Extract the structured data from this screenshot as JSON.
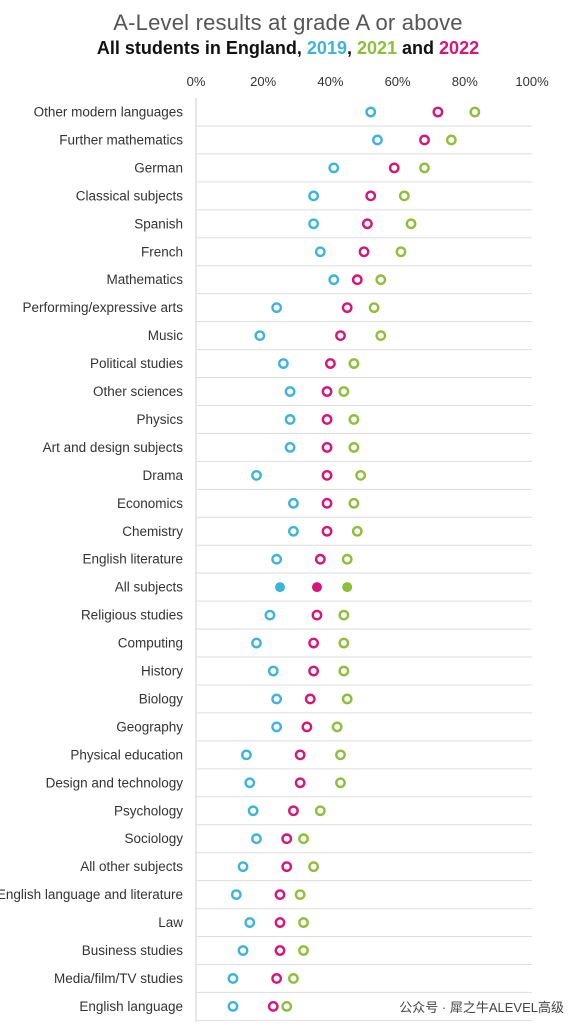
{
  "title": "A-Level results at grade A or above",
  "subtitle": {
    "prefix": "All students in England, ",
    "y2019": "2019",
    "sep1": ", ",
    "y2021": "2021",
    "sep2": " and ",
    "y2022": "2022"
  },
  "colors": {
    "2019": "#3db4dc",
    "2021": "#8dbf3a",
    "2022": "#d6147a",
    "grid": "#dddddd",
    "text": "#333333"
  },
  "watermark": "公众号 · 犀之牛ALEVEL高级",
  "chart_data": {
    "type": "scatter",
    "x_tick_labels": [
      "0%",
      "20%",
      "40%",
      "60%",
      "80%",
      "100%"
    ],
    "xlim": [
      0,
      100
    ],
    "categories": [
      "Other modern languages",
      "Further mathematics",
      "German",
      "Classical subjects",
      "Spanish",
      "French",
      "Mathematics",
      "Performing/expressive arts",
      "Music",
      "Political studies",
      "Other sciences",
      "Physics",
      "Art and design subjects",
      "Drama",
      "Economics",
      "Chemistry",
      "English literature",
      "All subjects",
      "Religious studies",
      "Computing",
      "History",
      "Biology",
      "Geography",
      "Physical education",
      "Design and technology",
      "Psychology",
      "Sociology",
      "All other subjects",
      "English language and literature",
      "Law",
      "Business studies",
      "Media/film/TV studies",
      "English language"
    ],
    "highlight_category": "All subjects",
    "series": [
      {
        "name": "2019",
        "color": "#3db4dc",
        "values": [
          52,
          54,
          41,
          35,
          35,
          37,
          41,
          24,
          19,
          26,
          28,
          28,
          28,
          18,
          29,
          29,
          24,
          25,
          22,
          18,
          23,
          24,
          24,
          15,
          16,
          17,
          18,
          14,
          12,
          16,
          14,
          11,
          11
        ]
      },
      {
        "name": "2021",
        "color": "#8dbf3a",
        "values": [
          83,
          76,
          68,
          62,
          64,
          61,
          55,
          53,
          55,
          47,
          44,
          47,
          47,
          49,
          47,
          48,
          45,
          45,
          44,
          44,
          44,
          45,
          42,
          43,
          43,
          37,
          32,
          35,
          31,
          32,
          32,
          29,
          27
        ]
      },
      {
        "name": "2022",
        "color": "#d6147a",
        "values": [
          72,
          68,
          59,
          52,
          51,
          50,
          48,
          45,
          43,
          40,
          39,
          39,
          39,
          39,
          39,
          39,
          37,
          36,
          36,
          35,
          35,
          34,
          33,
          31,
          31,
          29,
          27,
          27,
          25,
          25,
          25,
          24,
          23
        ]
      }
    ]
  }
}
